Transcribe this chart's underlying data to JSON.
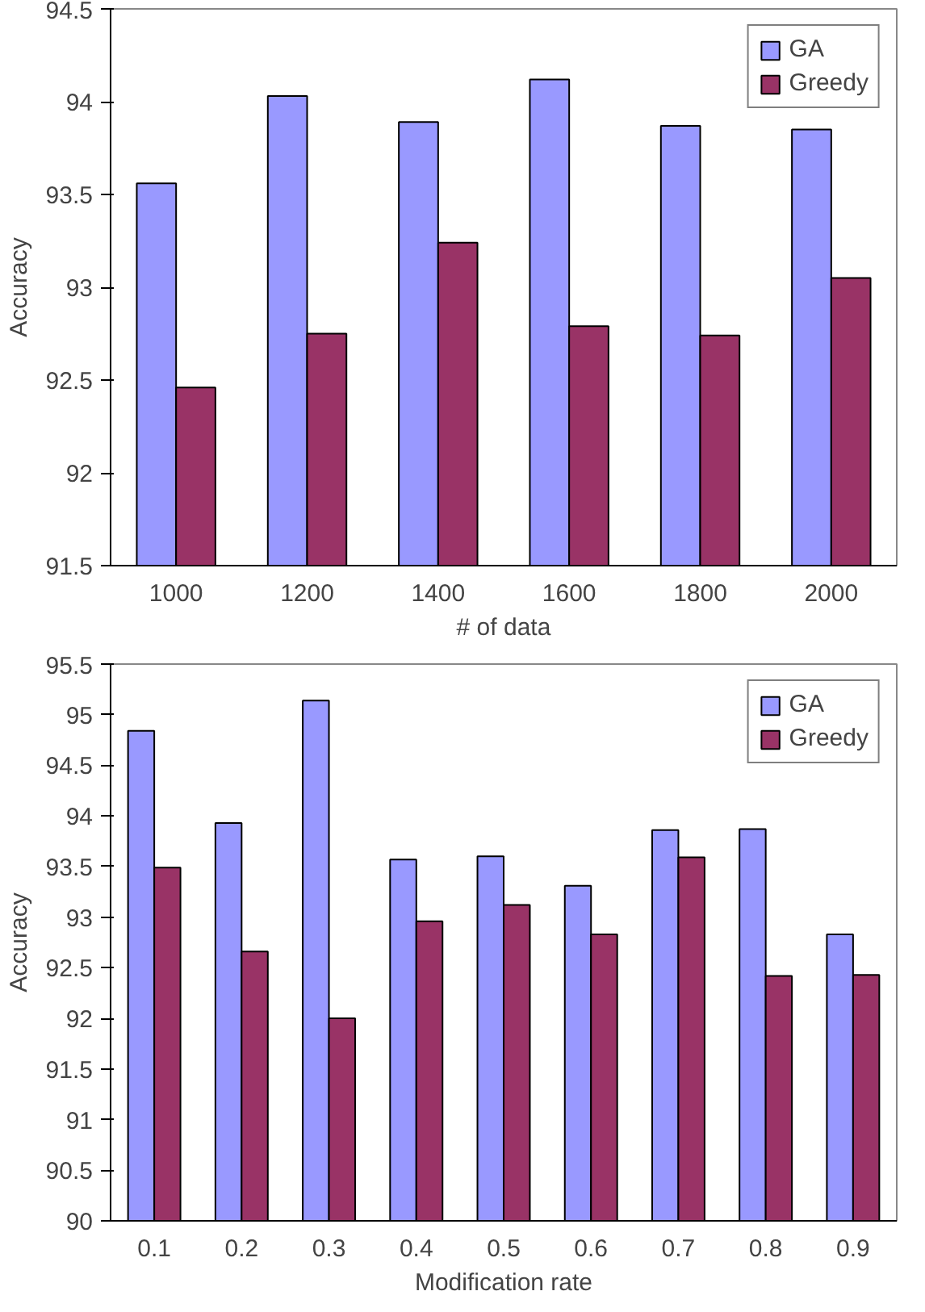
{
  "chart_data": [
    {
      "type": "bar",
      "xlabel": "# of data",
      "ylabel": "Accuracy",
      "categories": [
        "1000",
        "1200",
        "1400",
        "1600",
        "1800",
        "2000"
      ],
      "series": [
        {
          "name": "GA",
          "color": "#9999ff",
          "values": [
            93.56,
            94.03,
            93.89,
            94.12,
            93.87,
            93.85
          ]
        },
        {
          "name": "Greedy",
          "color": "#993366",
          "values": [
            92.46,
            92.75,
            93.24,
            92.79,
            92.74,
            93.05
          ]
        }
      ],
      "ylim": [
        91.5,
        94.5
      ],
      "yticks": [
        91.5,
        92,
        92.5,
        93,
        93.5,
        94,
        94.5
      ],
      "grid": false,
      "legend": "top right"
    },
    {
      "type": "bar",
      "xlabel": "Modification rate",
      "ylabel": "Accuracy",
      "categories": [
        "0.1",
        "0.2",
        "0.3",
        "0.4",
        "0.5",
        "0.6",
        "0.7",
        "0.8",
        "0.9"
      ],
      "series": [
        {
          "name": "GA",
          "color": "#9999ff",
          "values": [
            94.84,
            93.93,
            95.14,
            93.57,
            93.6,
            93.31,
            93.86,
            93.87,
            92.83
          ]
        },
        {
          "name": "Greedy",
          "color": "#993366",
          "values": [
            93.49,
            92.66,
            92.0,
            92.96,
            93.12,
            92.83,
            93.59,
            92.42,
            92.43
          ]
        }
      ],
      "ylim": [
        90,
        95.5
      ],
      "yticks": [
        90,
        90.5,
        91,
        91.5,
        92,
        92.5,
        93,
        93.5,
        94,
        94.5,
        95,
        95.5
      ],
      "grid": false,
      "legend": "top right"
    }
  ]
}
